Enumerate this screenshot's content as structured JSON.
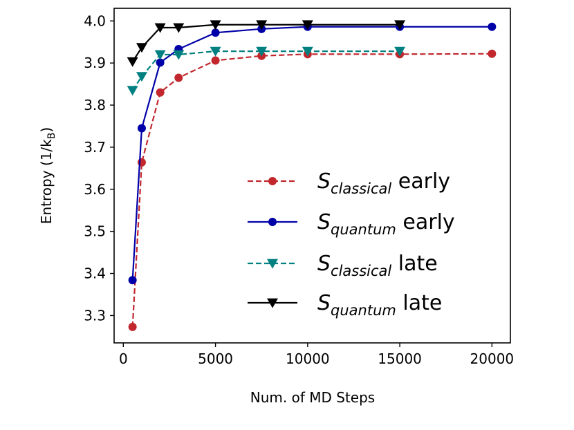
{
  "chart_data": {
    "type": "line",
    "title": "",
    "xlabel": "Num. of MD Steps",
    "ylabel": "Entropy (1/k",
    "ylabel_subscript": "B",
    "ylabel_close": ")",
    "xlim": [
      -500,
      21000
    ],
    "ylim": [
      3.235,
      4.03
    ],
    "xticks": [
      0,
      5000,
      10000,
      15000,
      20000
    ],
    "xtick_labels": [
      "0",
      "5000",
      "10000",
      "15000",
      "20000"
    ],
    "yticks": [
      3.3,
      3.4,
      3.5,
      3.6,
      3.7,
      3.8,
      3.9,
      4.0
    ],
    "ytick_labels": [
      "3.3",
      "3.4",
      "3.5",
      "3.6",
      "3.7",
      "3.8",
      "3.9",
      "4.0"
    ],
    "grid": false,
    "legend_position": "center-right",
    "series": [
      {
        "name": "S classical early",
        "legend_symbol": "S",
        "legend_sub": "classical",
        "legend_suffix": " early",
        "color": "#c1272d",
        "dash": "dashed",
        "marker": "circle",
        "x": [
          500,
          1000,
          2000,
          3000,
          5000,
          7500,
          10000,
          15000,
          20000
        ],
        "values": [
          3.273,
          3.664,
          3.83,
          3.865,
          3.906,
          3.917,
          3.921,
          3.921,
          3.922
        ]
      },
      {
        "name": "S quantum early",
        "legend_symbol": "S",
        "legend_sub": "quantum",
        "legend_suffix": " early",
        "color": "#0000a8",
        "dash": "solid",
        "marker": "circle",
        "x": [
          500,
          1000,
          2000,
          3000,
          5000,
          7500,
          10000,
          15000,
          20000
        ],
        "values": [
          3.384,
          3.745,
          3.901,
          3.933,
          3.972,
          3.981,
          3.986,
          3.986,
          3.986
        ]
      },
      {
        "name": "S classical late",
        "legend_symbol": "S",
        "legend_sub": "classical",
        "legend_suffix": " late",
        "color": "#008080",
        "dash": "dashed",
        "marker": "triangle-down",
        "x": [
          500,
          1000,
          2000,
          3000,
          5000,
          7500,
          10000,
          15000
        ],
        "values": [
          3.835,
          3.868,
          3.92,
          3.92,
          3.928,
          3.928,
          3.928,
          3.928
        ]
      },
      {
        "name": "S quantum late",
        "legend_symbol": "S",
        "legend_sub": "quantum",
        "legend_suffix": " late",
        "color": "#000000",
        "dash": "solid",
        "marker": "triangle-down",
        "x": [
          500,
          1000,
          2000,
          3000,
          5000,
          7500,
          10000,
          15000
        ],
        "values": [
          3.903,
          3.937,
          3.984,
          3.984,
          3.991,
          3.991,
          3.991,
          3.991
        ]
      }
    ]
  }
}
